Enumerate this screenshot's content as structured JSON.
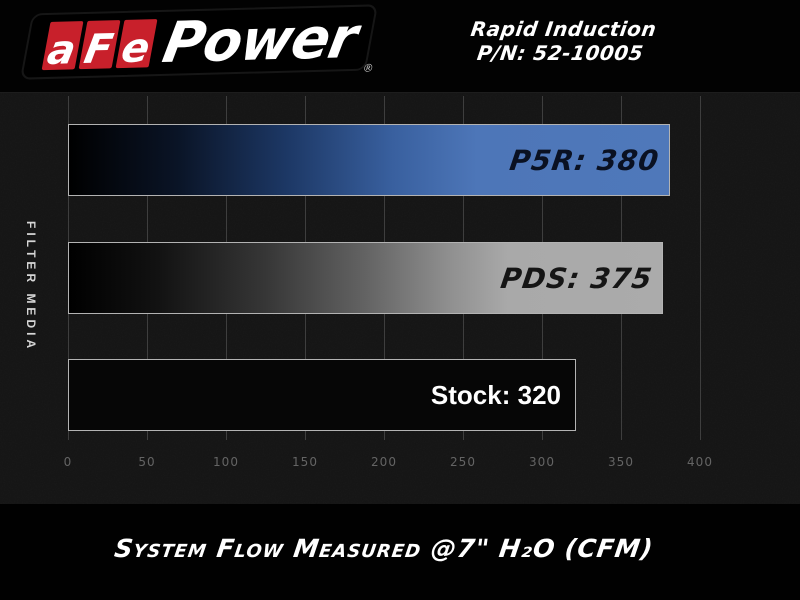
{
  "header": {
    "logo": {
      "letters": [
        "a",
        "F",
        "e"
      ],
      "word": "Power",
      "registered": "®"
    },
    "product_line1": "Rapid Induction",
    "product_line2": "P/N: 52-10005"
  },
  "chart_data": {
    "type": "bar",
    "orientation": "horizontal",
    "title": "System Flow Measured @7\" H₂O (CFM)",
    "xlabel": "",
    "ylabel": "FILTER MEDIA",
    "categories": [
      "P5R",
      "PDS",
      "Stock"
    ],
    "series": [
      {
        "name": "System Flow (CFM)",
        "values": [
          380,
          375,
          320
        ]
      }
    ],
    "bar_labels": [
      "P5R: 380",
      "PDS: 375",
      "Stock: 320"
    ],
    "x_ticks": [
      0,
      50,
      100,
      150,
      200,
      250,
      300,
      350,
      400
    ],
    "xlim": [
      0,
      450
    ],
    "grid": true,
    "legend": false,
    "bar_colors": {
      "P5R": "#4d76b8",
      "PDS": "#a9a9a9",
      "Stock": "#060606"
    },
    "bar_fill_style": "gradient from black on left to solid color on right"
  },
  "colors": {
    "page_background": "#000000",
    "chart_background": "#141414",
    "gridline": "#3e3e3e",
    "bar_border": "#b3b3b3",
    "accent_red": "#c8202b",
    "blue_bar": "#4d76b8",
    "gray_bar": "#a9a9a9",
    "tick_text": "#646464",
    "text_white": "#ffffff"
  }
}
